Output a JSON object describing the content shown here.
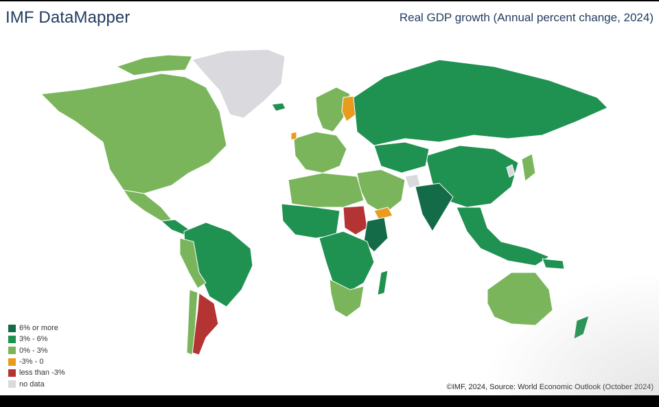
{
  "header": {
    "brand": "IMF DataMapper",
    "title": "Real GDP growth (Annual percent change, 2024)"
  },
  "legend": [
    {
      "label": "6% or more",
      "color": "#146b47"
    },
    {
      "label": "3% - 6%",
      "color": "#1f9150"
    },
    {
      "label": "0% - 3%",
      "color": "#7ab55c"
    },
    {
      "label": "-3% - 0",
      "color": "#e89b1c"
    },
    {
      "label": "less than -3%",
      "color": "#b43434"
    },
    {
      "label": "no data",
      "color": "#d9d9de"
    }
  ],
  "footer": {
    "source": "©IMF, 2024, Source: World Economic Outlook (October 2024)"
  }
}
